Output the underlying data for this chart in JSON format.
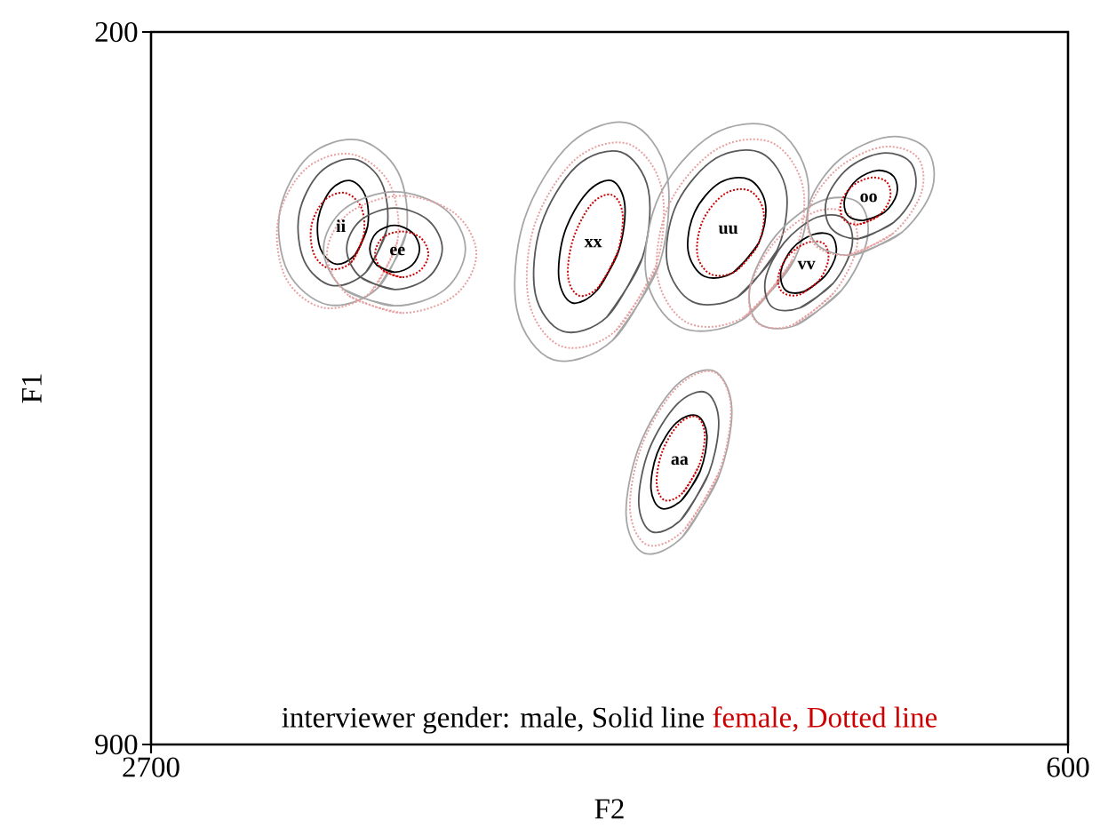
{
  "chart_data": {
    "type": "line",
    "xlabel": "F2",
    "ylabel": "F1",
    "xlim": [
      2700,
      600
    ],
    "ylim": [
      900,
      200
    ],
    "xticks": [
      2700,
      600
    ],
    "yticks": [
      200,
      900
    ],
    "legend": "bottom",
    "legend_title": "interviewer gender:",
    "series": [
      {
        "color": "#a6a6a6",
        "line_style": "solid",
        "x": [
          2116,
          2182,
          2294,
          2386,
          2405,
          2339,
          2227,
          2135,
          2116,
          2182
        ],
        "values": [
          398,
          452,
          468,
          436,
          376,
          322,
          306,
          337,
          398,
          452
        ]
      },
      {
        "color": "#595959",
        "line_style": "solid",
        "x": [
          2160,
          2208,
          2286,
          2349,
          2361,
          2313,
          2235,
          2172,
          2160,
          2208
        ],
        "values": [
          394,
          436,
          449,
          425,
          379,
          338,
          325,
          348,
          394,
          436
        ]
      },
      {
        "name": "male, Solid line",
        "color": "#000000",
        "line_style": "solid",
        "x": [
          2204,
          2233,
          2277,
          2312,
          2317,
          2288,
          2243,
          2209,
          2204,
          2233
        ],
        "values": [
          391,
          419,
          428,
          413,
          383,
          355,
          346,
          361,
          391,
          419
        ]
      },
      {
        "color": "#e8a0a0",
        "line_style": "dotted",
        "x": [
          2136,
          2198,
          2304,
          2391,
          2409,
          2347,
          2242,
          2154,
          2136,
          2198
        ],
        "values": [
          406,
          456,
          471,
          442,
          385,
          335,
          320,
          349,
          406,
          456
        ]
      },
      {
        "name": "female, Dotted line",
        "color": "#cc0000",
        "line_style": "dotted",
        "x": [
          2213,
          2241,
          2288,
          2326,
          2333,
          2304,
          2257,
          2219,
          2213,
          2241
        ],
        "values": [
          400,
          426,
          433,
          419,
          391,
          366,
          358,
          372,
          400,
          426
        ]
      },
      {
        "color": "#a6a6a6",
        "line_style": "solid",
        "x": [
          2142,
          2258,
          2305,
          2258,
          2142,
          2027,
          1980,
          2027,
          2142,
          2258
        ],
        "values": [
          469,
          453,
          413,
          374,
          357,
          374,
          413,
          453,
          469,
          453
        ]
      },
      {
        "color": "#595959",
        "line_style": "solid",
        "x": [
          2142,
          2220,
          2252,
          2220,
          2142,
          2065,
          2033,
          2065,
          2142,
          2220
        ],
        "values": [
          453,
          441,
          413,
          385,
          373,
          385,
          413,
          441,
          453,
          441
        ]
      },
      {
        "color": "#000000",
        "line_style": "solid",
        "x": [
          2142,
          2183,
          2199,
          2183,
          2142,
          2102,
          2085,
          2102,
          2142,
          2183
        ],
        "values": [
          436,
          429,
          413,
          397,
          390,
          397,
          413,
          429,
          436,
          429
        ]
      },
      {
        "color": "#e8a0a0",
        "line_style": "dotted",
        "x": [
          2126,
          2247,
          2297,
          2247,
          2126,
          2005,
          1955,
          2005,
          2126,
          2247
        ],
        "values": [
          476,
          459,
          418,
          378,
          361,
          378,
          418,
          459,
          476,
          459
        ]
      },
      {
        "color": "#cc0000",
        "line_style": "dotted",
        "x": [
          2126,
          2169,
          2187,
          2169,
          2126,
          2083,
          2065,
          2083,
          2126,
          2169
        ],
        "values": [
          441,
          434,
          418,
          402,
          396,
          402,
          418,
          434,
          441,
          434
        ]
      },
      {
        "color": "#a6a6a6",
        "line_style": "solid",
        "x": [
          1536,
          1643,
          1779,
          1862,
          1845,
          1738,
          1603,
          1519,
          1536,
          1643
        ],
        "values": [
          428,
          503,
          522,
          473,
          384,
          309,
          290,
          339,
          428,
          503
        ]
      },
      {
        "color": "#595959",
        "line_style": "solid",
        "x": [
          1575,
          1656,
          1757,
          1820,
          1807,
          1726,
          1624,
          1561,
          1575,
          1656
        ],
        "values": [
          422,
          480,
          494,
          457,
          390,
          332,
          318,
          355,
          422,
          480
        ]
      },
      {
        "color": "#000000",
        "line_style": "solid",
        "x": [
          1629,
          1679,
          1736,
          1766,
          1753,
          1702,
          1645,
          1615,
          1629,
          1679
        ],
        "values": [
          415,
          454,
          466,
          442,
          397,
          358,
          346,
          370,
          415,
          454
        ]
      },
      {
        "color": "#e8a0a0",
        "line_style": "dotted",
        "x": [
          1543,
          1637,
          1758,
          1834,
          1822,
          1728,
          1607,
          1531,
          1543,
          1637
        ],
        "values": [
          429,
          494,
          509,
          466,
          390,
          325,
          310,
          353,
          429,
          494
        ]
      },
      {
        "color": "#cc0000",
        "line_style": "dotted",
        "x": [
          1632,
          1674,
          1720,
          1745,
          1733,
          1691,
          1645,
          1620,
          1632,
          1674
        ],
        "values": [
          417,
          450,
          459,
          440,
          403,
          369,
          360,
          379,
          417,
          450
        ]
      },
      {
        "color": "#a6a6a6",
        "line_style": "solid",
        "x": [
          1226,
          1347,
          1488,
          1566,
          1536,
          1415,
          1275,
          1196,
          1226,
          1347
        ],
        "values": [
          423,
          483,
          490,
          440,
          361,
          301,
          294,
          345,
          423,
          483
        ]
      },
      {
        "color": "#595959",
        "line_style": "solid",
        "x": [
          1267,
          1356,
          1460,
          1518,
          1496,
          1406,
          1302,
          1245,
          1267,
          1356
        ],
        "values": [
          415,
          460,
          465,
          427,
          369,
          324,
          319,
          357,
          415,
          460
        ]
      },
      {
        "color": "#000000",
        "line_style": "solid",
        "x": [
          1308,
          1366,
          1433,
          1470,
          1455,
          1397,
          1330,
          1293,
          1308,
          1366
        ],
        "values": [
          407,
          436,
          440,
          415,
          377,
          348,
          345,
          369,
          407,
          436
        ]
      },
      {
        "color": "#e8a0a0",
        "line_style": "dotted",
        "x": [
          1233,
          1342,
          1470,
          1540,
          1513,
          1404,
          1277,
          1206,
          1233,
          1342
        ],
        "values": [
          425,
          480,
          486,
          440,
          369,
          315,
          309,
          355,
          425,
          480
        ]
      },
      {
        "color": "#cc0000",
        "line_style": "dotted",
        "x": [
          1311,
          1361,
          1418,
          1449,
          1436,
          1386,
          1329,
          1297,
          1311,
          1361
        ],
        "values": [
          410,
          435,
          438,
          418,
          385,
          359,
          356,
          377,
          410,
          435
        ]
      },
      {
        "color": "#a6a6a6",
        "line_style": "solid",
        "x": [
          1119,
          1223,
          1309,
          1328,
          1269,
          1166,
          1079,
          1060,
          1119,
          1223
        ],
        "values": [
          454,
          488,
          486,
          450,
          400,
          366,
          368,
          404,
          454,
          488
        ]
      },
      {
        "color": "#595959",
        "line_style": "solid",
        "x": [
          1138,
          1214,
          1278,
          1293,
          1250,
          1175,
          1110,
          1095,
          1138,
          1214
        ],
        "values": [
          447,
          471,
          470,
          443,
          407,
          382,
          384,
          411,
          447,
          471
        ]
      },
      {
        "color": "#000000",
        "line_style": "solid",
        "x": [
          1157,
          1205,
          1246,
          1258,
          1232,
          1184,
          1142,
          1131,
          1157,
          1205
        ],
        "values": [
          440,
          455,
          454,
          436,
          413,
          399,
          400,
          418,
          440,
          455
        ]
      },
      {
        "color": "#e8a0a0",
        "line_style": "dotted",
        "x": [
          1138,
          1232,
          1311,
          1329,
          1275,
          1181,
          1102,
          1084,
          1138,
          1232
        ],
        "values": [
          457,
          488,
          486,
          453,
          408,
          377,
          379,
          412,
          457,
          488
        ]
      },
      {
        "color": "#cc0000",
        "line_style": "dotted",
        "x": [
          1172,
          1215,
          1253,
          1264,
          1241,
          1197,
          1159,
          1149,
          1172,
          1215
        ],
        "values": [
          445,
          458,
          456,
          441,
          420,
          407,
          408,
          424,
          445,
          458
        ]
      },
      {
        "color": "#a6a6a6",
        "line_style": "solid",
        "x": [
          981,
          1092,
          1179,
          1192,
          1122,
          1011,
          924,
          911,
          981,
          1092
        ],
        "values": [
          397,
          419,
          407,
          368,
          325,
          303,
          315,
          354,
          397,
          419
        ]
      },
      {
        "color": "#595959",
        "line_style": "solid",
        "x": [
          999,
          1079,
          1142,
          1153,
          1104,
          1025,
          961,
          951,
          999,
          1079
        ],
        "values": [
          387,
          403,
          393,
          365,
          334,
          319,
          328,
          357,
          387,
          403
        ]
      },
      {
        "color": "#000000",
        "line_style": "solid",
        "x": [
          1020,
          1067,
          1105,
          1111,
          1083,
          1036,
          999,
          992,
          1020,
          1067
        ],
        "values": [
          377,
          385,
          380,
          363,
          345,
          336,
          342,
          359,
          377,
          385
        ]
      },
      {
        "color": "#e8a0a0",
        "line_style": "dotted",
        "x": [
          1001,
          1103,
          1182,
          1192,
          1127,
          1025,
          945,
          936,
          1001,
          1103
        ],
        "values": [
          398,
          419,
          408,
          373,
          334,
          313,
          323,
          358,
          398,
          419
        ]
      },
      {
        "color": "#cc0000",
        "line_style": "dotted",
        "x": [
          1035,
          1079,
          1114,
          1120,
          1093,
          1049,
          1014,
          1008,
          1035,
          1079
        ],
        "values": [
          381,
          389,
          384,
          368,
          351,
          343,
          348,
          364,
          381,
          389
        ]
      },
      {
        "color": "#a6a6a6",
        "line_style": "solid",
        "x": [
          1400,
          1483,
          1571,
          1612,
          1582,
          1499,
          1411,
          1370,
          1400,
          1483
        ],
        "values": [
          637,
          696,
          712,
          675,
          607,
          548,
          533,
          570,
          637,
          696
        ]
      },
      {
        "color": "#595959",
        "line_style": "solid",
        "x": [
          1423,
          1486,
          1553,
          1583,
          1560,
          1496,
          1430,
          1400,
          1423,
          1486
        ],
        "values": [
          634,
          679,
          691,
          663,
          611,
          566,
          554,
          582,
          634,
          679
        ]
      },
      {
        "color": "#000000",
        "line_style": "solid",
        "x": [
          1442,
          1485,
          1532,
          1555,
          1541,
          1497,
          1450,
          1427,
          1442,
          1485
        ],
        "values": [
          631,
          660,
          668,
          649,
          614,
          584,
          577,
          596,
          631,
          660
        ]
      },
      {
        "color": "#e8a0a0",
        "line_style": "dotted",
        "x": [
          1400,
          1479,
          1563,
          1603,
          1575,
          1495,
          1411,
          1372,
          1400,
          1479
        ],
        "values": [
          633,
          689,
          704,
          669,
          605,
          549,
          534,
          569,
          633,
          689
        ]
      },
      {
        "color": "#cc0000",
        "line_style": "dotted",
        "x": [
          1445,
          1483,
          1524,
          1542,
          1529,
          1491,
          1451,
          1432,
          1445,
          1483
        ],
        "values": [
          626,
          653,
          660,
          643,
          612,
          585,
          578,
          595,
          626,
          653
        ]
      }
    ],
    "annotations": [
      "ii",
      "ee",
      "xx",
      "uu",
      "vv",
      "oo",
      "aa"
    ]
  }
}
